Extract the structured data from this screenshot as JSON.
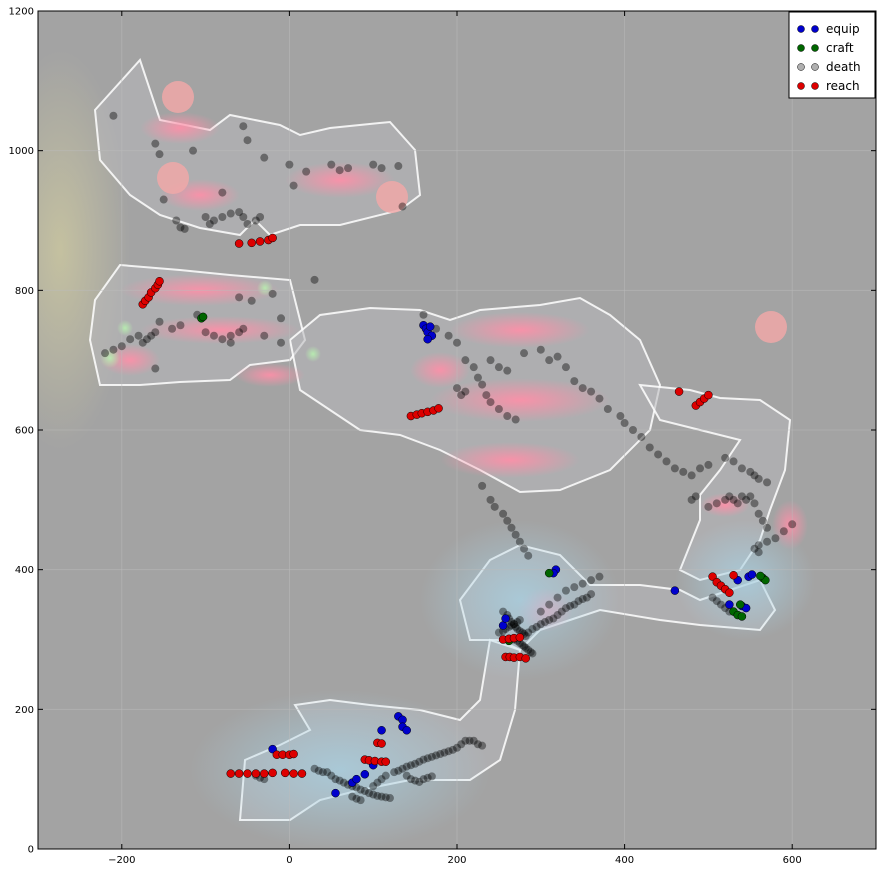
{
  "chart_data": {
    "type": "scatter",
    "xlim": [
      -300,
      700
    ],
    "ylim": [
      0,
      1200
    ],
    "x_ticks": [
      -200,
      0,
      200,
      400,
      600
    ],
    "y_ticks": [
      0,
      200,
      400,
      600,
      800,
      1000,
      1200
    ],
    "grid": true,
    "legend_placement": "top-right",
    "background_image": "game map heatmap overlay (pink and blue density blobs on grey)",
    "colors": {
      "equip": "#0000cc",
      "craft": "#006600",
      "death": "#b0b0b0",
      "reach": "#dd0000",
      "death_points": "#000000",
      "background": "#a3a3a3"
    },
    "series": [
      {
        "name": "equip",
        "points": [
          [
            160,
            750
          ],
          [
            163,
            745
          ],
          [
            165,
            740
          ],
          [
            168,
            748
          ],
          [
            170,
            735
          ],
          [
            165,
            730
          ],
          [
            318,
            400
          ],
          [
            315,
            395
          ],
          [
            255,
            320
          ],
          [
            258,
            330
          ],
          [
            460,
            370
          ],
          [
            548,
            390
          ],
          [
            552,
            393
          ],
          [
            535,
            385
          ],
          [
            540,
            348
          ],
          [
            545,
            345
          ],
          [
            525,
            350
          ],
          [
            -20,
            143
          ],
          [
            55,
            80
          ],
          [
            75,
            95
          ],
          [
            80,
            100
          ],
          [
            90,
            107
          ],
          [
            100,
            120
          ],
          [
            110,
            170
          ],
          [
            130,
            190
          ],
          [
            135,
            185
          ],
          [
            135,
            175
          ],
          [
            140,
            170
          ]
        ]
      },
      {
        "name": "craft",
        "points": [
          [
            -105,
            760
          ],
          [
            -103,
            762
          ],
          [
            310,
            395
          ],
          [
            262,
            298
          ],
          [
            530,
            340
          ],
          [
            535,
            335
          ],
          [
            540,
            333
          ],
          [
            538,
            350
          ],
          [
            565,
            388
          ],
          [
            568,
            385
          ],
          [
            562,
            391
          ]
        ]
      },
      {
        "name": "death",
        "points": []
      },
      {
        "name": "reach",
        "points": [
          [
            -175,
            780
          ],
          [
            -172,
            785
          ],
          [
            -168,
            790
          ],
          [
            -165,
            797
          ],
          [
            -160,
            803
          ],
          [
            -157,
            808
          ],
          [
            -155,
            813
          ],
          [
            -60,
            867
          ],
          [
            -45,
            868
          ],
          [
            -35,
            870
          ],
          [
            -25,
            872
          ],
          [
            -20,
            875
          ],
          [
            145,
            620
          ],
          [
            152,
            622
          ],
          [
            158,
            624
          ],
          [
            165,
            626
          ],
          [
            172,
            628
          ],
          [
            178,
            631
          ],
          [
            485,
            635
          ],
          [
            490,
            640
          ],
          [
            495,
            645
          ],
          [
            500,
            650
          ],
          [
            465,
            655
          ],
          [
            255,
            300
          ],
          [
            262,
            301
          ],
          [
            268,
            302
          ],
          [
            275,
            303
          ],
          [
            258,
            275
          ],
          [
            263,
            275
          ],
          [
            268,
            274
          ],
          [
            275,
            275
          ],
          [
            282,
            273
          ],
          [
            505,
            390
          ],
          [
            510,
            382
          ],
          [
            515,
            377
          ],
          [
            520,
            372
          ],
          [
            525,
            367
          ],
          [
            530,
            392
          ],
          [
            -70,
            108
          ],
          [
            -60,
            108
          ],
          [
            -50,
            108
          ],
          [
            -40,
            108
          ],
          [
            -30,
            108
          ],
          [
            -20,
            109
          ],
          [
            -5,
            109
          ],
          [
            5,
            108
          ],
          [
            15,
            108
          ],
          [
            -15,
            135
          ],
          [
            -8,
            135
          ],
          [
            0,
            135
          ],
          [
            5,
            136
          ],
          [
            90,
            128
          ],
          [
            95,
            127
          ],
          [
            102,
            126
          ],
          [
            110,
            125
          ],
          [
            115,
            125
          ],
          [
            105,
            152
          ],
          [
            110,
            151
          ]
        ]
      }
    ],
    "death_points": [
      [
        -210,
        1050
      ],
      [
        -160,
        1010
      ],
      [
        -155,
        995
      ],
      [
        -115,
        1000
      ],
      [
        -55,
        1035
      ],
      [
        -50,
        1015
      ],
      [
        -30,
        990
      ],
      [
        0,
        980
      ],
      [
        20,
        970
      ],
      [
        5,
        950
      ],
      [
        -80,
        940
      ],
      [
        -150,
        930
      ],
      [
        -135,
        900
      ],
      [
        -130,
        890
      ],
      [
        -125,
        888
      ],
      [
        -100,
        905
      ],
      [
        -95,
        895
      ],
      [
        -90,
        900
      ],
      [
        -80,
        905
      ],
      [
        -70,
        910
      ],
      [
        -60,
        912
      ],
      [
        -55,
        905
      ],
      [
        -50,
        895
      ],
      [
        -40,
        900
      ],
      [
        -35,
        905
      ],
      [
        50,
        980
      ],
      [
        60,
        972
      ],
      [
        70,
        975
      ],
      [
        100,
        980
      ],
      [
        110,
        975
      ],
      [
        130,
        978
      ],
      [
        135,
        920
      ],
      [
        30,
        815
      ],
      [
        -60,
        790
      ],
      [
        -45,
        785
      ],
      [
        -20,
        795
      ],
      [
        -10,
        760
      ],
      [
        -55,
        745
      ],
      [
        -60,
        740
      ],
      [
        -70,
        735
      ],
      [
        -110,
        765
      ],
      [
        -130,
        750
      ],
      [
        -140,
        745
      ],
      [
        -155,
        755
      ],
      [
        -160,
        740
      ],
      [
        -165,
        735
      ],
      [
        -170,
        730
      ],
      [
        -175,
        725
      ],
      [
        -180,
        735
      ],
      [
        -190,
        730
      ],
      [
        -200,
        720
      ],
      [
        -210,
        715
      ],
      [
        -220,
        710
      ],
      [
        -160,
        688
      ],
      [
        -100,
        740
      ],
      [
        -90,
        735
      ],
      [
        -80,
        730
      ],
      [
        -70,
        725
      ],
      [
        -30,
        735
      ],
      [
        -10,
        725
      ],
      [
        160,
        765
      ],
      [
        175,
        745
      ],
      [
        190,
        735
      ],
      [
        200,
        725
      ],
      [
        210,
        700
      ],
      [
        220,
        690
      ],
      [
        225,
        675
      ],
      [
        230,
        665
      ],
      [
        235,
        650
      ],
      [
        240,
        640
      ],
      [
        250,
        630
      ],
      [
        260,
        620
      ],
      [
        270,
        615
      ],
      [
        200,
        660
      ],
      [
        205,
        650
      ],
      [
        210,
        655
      ],
      [
        240,
        700
      ],
      [
        250,
        690
      ],
      [
        260,
        685
      ],
      [
        280,
        710
      ],
      [
        300,
        715
      ],
      [
        310,
        700
      ],
      [
        320,
        705
      ],
      [
        330,
        690
      ],
      [
        340,
        670
      ],
      [
        350,
        660
      ],
      [
        360,
        655
      ],
      [
        370,
        645
      ],
      [
        380,
        630
      ],
      [
        395,
        620
      ],
      [
        400,
        610
      ],
      [
        410,
        600
      ],
      [
        420,
        590
      ],
      [
        430,
        575
      ],
      [
        440,
        565
      ],
      [
        450,
        555
      ],
      [
        460,
        545
      ],
      [
        470,
        540
      ],
      [
        480,
        535
      ],
      [
        490,
        545
      ],
      [
        500,
        550
      ],
      [
        520,
        560
      ],
      [
        530,
        555
      ],
      [
        540,
        545
      ],
      [
        550,
        540
      ],
      [
        555,
        535
      ],
      [
        560,
        530
      ],
      [
        570,
        525
      ],
      [
        500,
        490
      ],
      [
        510,
        495
      ],
      [
        520,
        500
      ],
      [
        525,
        505
      ],
      [
        530,
        500
      ],
      [
        535,
        495
      ],
      [
        540,
        505
      ],
      [
        545,
        500
      ],
      [
        550,
        505
      ],
      [
        555,
        495
      ],
      [
        560,
        480
      ],
      [
        565,
        470
      ],
      [
        570,
        460
      ],
      [
        600,
        465
      ],
      [
        590,
        455
      ],
      [
        580,
        445
      ],
      [
        570,
        440
      ],
      [
        560,
        435
      ],
      [
        555,
        430
      ],
      [
        560,
        425
      ],
      [
        230,
        520
      ],
      [
        240,
        500
      ],
      [
        245,
        490
      ],
      [
        255,
        480
      ],
      [
        260,
        470
      ],
      [
        265,
        460
      ],
      [
        270,
        450
      ],
      [
        275,
        440
      ],
      [
        280,
        430
      ],
      [
        285,
        420
      ],
      [
        255,
        340
      ],
      [
        260,
        335
      ],
      [
        262,
        330
      ],
      [
        265,
        325
      ],
      [
        268,
        322
      ],
      [
        270,
        318
      ],
      [
        272,
        315
      ],
      [
        275,
        312
      ],
      [
        278,
        310
      ],
      [
        280,
        308
      ],
      [
        282,
        305
      ],
      [
        285,
        310
      ],
      [
        290,
        315
      ],
      [
        295,
        318
      ],
      [
        300,
        322
      ],
      [
        305,
        325
      ],
      [
        310,
        328
      ],
      [
        315,
        330
      ],
      [
        320,
        335
      ],
      [
        325,
        340
      ],
      [
        330,
        345
      ],
      [
        335,
        348
      ],
      [
        340,
        350
      ],
      [
        345,
        355
      ],
      [
        350,
        358
      ],
      [
        355,
        360
      ],
      [
        360,
        365
      ],
      [
        300,
        340
      ],
      [
        310,
        350
      ],
      [
        320,
        360
      ],
      [
        330,
        370
      ],
      [
        340,
        375
      ],
      [
        350,
        380
      ],
      [
        360,
        385
      ],
      [
        370,
        390
      ],
      [
        250,
        310
      ],
      [
        255,
        312
      ],
      [
        258,
        315
      ],
      [
        262,
        318
      ],
      [
        265,
        320
      ],
      [
        268,
        322
      ],
      [
        272,
        325
      ],
      [
        275,
        328
      ],
      [
        268,
        300
      ],
      [
        272,
        298
      ],
      [
        275,
        295
      ],
      [
        278,
        292
      ],
      [
        280,
        290
      ],
      [
        282,
        288
      ],
      [
        285,
        285
      ],
      [
        288,
        282
      ],
      [
        290,
        280
      ],
      [
        480,
        500
      ],
      [
        485,
        505
      ],
      [
        505,
        360
      ],
      [
        510,
        355
      ],
      [
        515,
        350
      ],
      [
        520,
        345
      ],
      [
        525,
        340
      ],
      [
        45,
        110
      ],
      [
        50,
        105
      ],
      [
        55,
        100
      ],
      [
        60,
        98
      ],
      [
        65,
        95
      ],
      [
        70,
        92
      ],
      [
        75,
        90
      ],
      [
        80,
        88
      ],
      [
        85,
        85
      ],
      [
        90,
        83
      ],
      [
        95,
        80
      ],
      [
        100,
        78
      ],
      [
        105,
        76
      ],
      [
        110,
        75
      ],
      [
        115,
        74
      ],
      [
        120,
        73
      ],
      [
        125,
        110
      ],
      [
        130,
        112
      ],
      [
        135,
        115
      ],
      [
        140,
        118
      ],
      [
        145,
        120
      ],
      [
        150,
        122
      ],
      [
        155,
        125
      ],
      [
        160,
        128
      ],
      [
        165,
        130
      ],
      [
        170,
        132
      ],
      [
        175,
        134
      ],
      [
        180,
        136
      ],
      [
        185,
        138
      ],
      [
        190,
        140
      ],
      [
        195,
        142
      ],
      [
        200,
        145
      ],
      [
        205,
        150
      ],
      [
        210,
        155
      ],
      [
        215,
        155
      ],
      [
        220,
        155
      ],
      [
        225,
        150
      ],
      [
        230,
        148
      ],
      [
        140,
        105
      ],
      [
        145,
        100
      ],
      [
        150,
        98
      ],
      [
        155,
        96
      ],
      [
        160,
        100
      ],
      [
        165,
        102
      ],
      [
        170,
        104
      ],
      [
        30,
        115
      ],
      [
        35,
        112
      ],
      [
        40,
        110
      ],
      [
        75,
        75
      ],
      [
        80,
        72
      ],
      [
        85,
        70
      ],
      [
        100,
        90
      ],
      [
        105,
        95
      ],
      [
        110,
        100
      ],
      [
        115,
        105
      ],
      [
        -40,
        105
      ],
      [
        -35,
        102
      ],
      [
        -30,
        100
      ]
    ]
  }
}
